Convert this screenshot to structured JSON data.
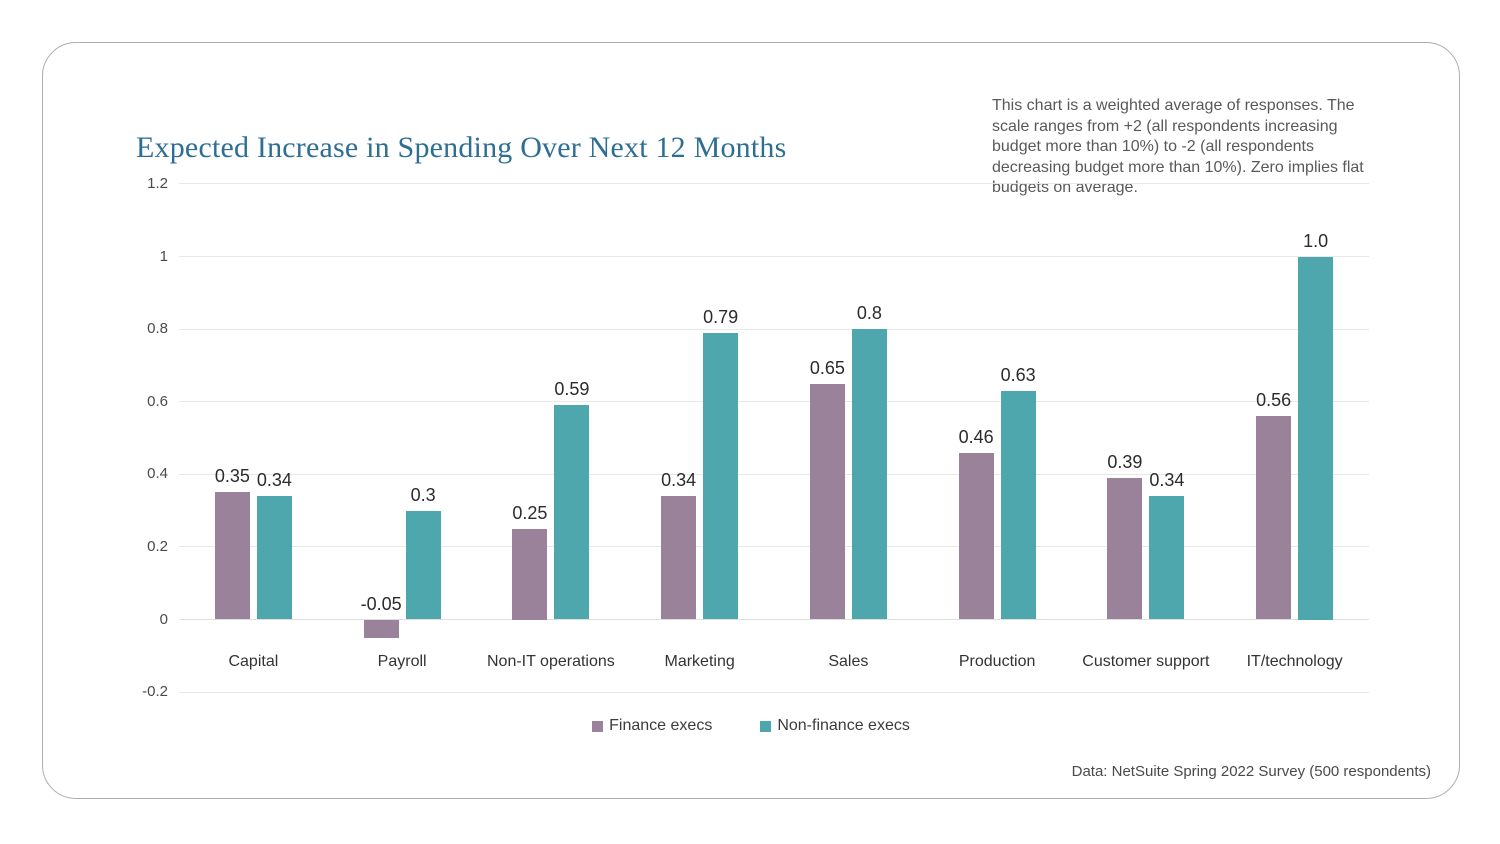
{
  "chart_data": {
    "type": "bar",
    "title": "Expected Increase in Spending Over Next 12 Months",
    "note": "This chart is a weighted average of responses. The scale ranges from +2 (all respondents increasing budget more than 10%) to -2 (all respondents decreasing budget more than 10%). Zero implies flat budgets on average.",
    "source": "Data: NetSuite Spring 2022 Survey (500 respondents)",
    "categories": [
      "Capital",
      "Payroll",
      "Non-IT operations",
      "Marketing",
      "Sales",
      "Production",
      "Customer support",
      "IT/technology"
    ],
    "series": [
      {
        "name": "Finance execs",
        "color": "#99829A",
        "values": [
          0.35,
          -0.05,
          0.25,
          0.34,
          0.65,
          0.46,
          0.39,
          0.56
        ],
        "value_labels": [
          "0.35",
          "-0.05",
          "0.25",
          "0.34",
          "0.65",
          "0.46",
          "0.39",
          "0.56"
        ]
      },
      {
        "name": "Non-finance execs",
        "color": "#4DA7AC",
        "values": [
          0.34,
          0.3,
          0.59,
          0.79,
          0.8,
          0.63,
          0.34,
          1.0
        ],
        "value_labels": [
          "0.34",
          "0.3",
          "0.59",
          "0.79",
          "0.8",
          "0.63",
          "0.34",
          "1.0"
        ]
      }
    ],
    "y_axis": {
      "tick_labels": [
        "1.2",
        "1",
        "0.8",
        "0.6",
        "0.4",
        "0.2",
        "0",
        "-0.2"
      ],
      "tick_values": [
        1.2,
        1,
        0.8,
        0.6,
        0.4,
        0.2,
        0,
        -0.2
      ],
      "range": [
        -0.2,
        1.2
      ]
    },
    "grid": true,
    "legend_position": "bottom",
    "colors": {
      "title": "#2D6F94",
      "note_text": "#595959",
      "value_label": "#2B2B2B",
      "gridline": "#E8E8E8",
      "card_border": "#ADADAD"
    }
  }
}
